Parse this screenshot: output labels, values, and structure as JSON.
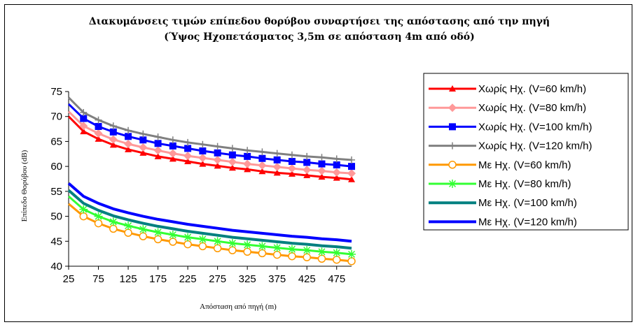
{
  "chart_data": {
    "type": "line",
    "title": "Διακυμάνσεις τιμών επίπεδου θορύβου συναρτήσει της απόστασης από την πηγή",
    "subtitle": "(Ύψος Ηχοπετάσματος 3,5m σε απόσταση 4m από οδό)",
    "xlabel": "Απόσταση από πηγή (m)",
    "ylabel": "Επίπεδο Θορύβου (dB)",
    "xlim": [
      25,
      500
    ],
    "ylim": [
      40,
      75
    ],
    "x_ticks": [
      "25",
      "75",
      "125",
      "175",
      "225",
      "275",
      "325",
      "375",
      "425",
      "475"
    ],
    "y_ticks": [
      "40",
      "45",
      "50",
      "55",
      "60",
      "65",
      "70",
      "75"
    ],
    "x": [
      25,
      50,
      75,
      100,
      125,
      150,
      175,
      200,
      225,
      250,
      275,
      300,
      325,
      350,
      375,
      400,
      425,
      450,
      475,
      500
    ],
    "grid": false,
    "legend": "right",
    "series": [
      {
        "name": "Χωρίς Ηχ. (V=60 km/h)",
        "color": "#ff0000",
        "marker": "triangle",
        "values": [
          70.0,
          67.0,
          65.5,
          64.3,
          63.4,
          62.7,
          62.0,
          61.5,
          61.0,
          60.5,
          60.1,
          59.7,
          59.4,
          59.0,
          58.7,
          58.5,
          58.2,
          57.9,
          57.7,
          57.4
        ]
      },
      {
        "name": "Χωρίς Ηχ. (V=80 km/h)",
        "color": "#ff9999",
        "marker": "diamond",
        "values": [
          71.0,
          68.1,
          66.6,
          65.4,
          64.5,
          63.8,
          63.2,
          62.6,
          62.1,
          61.7,
          61.3,
          60.9,
          60.5,
          60.2,
          59.9,
          59.6,
          59.3,
          59.1,
          58.8,
          58.6
        ]
      },
      {
        "name": "Χωρίς Ηχ. (V=100 km/h)",
        "color": "#0000ff",
        "marker": "square",
        "values": [
          72.5,
          69.6,
          68.0,
          66.9,
          66.0,
          65.3,
          64.6,
          64.1,
          63.6,
          63.1,
          62.7,
          62.3,
          62.0,
          61.6,
          61.3,
          61.0,
          60.8,
          60.5,
          60.3,
          60.0
        ]
      },
      {
        "name": "Χωρίς Ηχ. (V=120 km/h)",
        "color": "#808080",
        "marker": "plus",
        "values": [
          73.8,
          70.8,
          69.3,
          68.1,
          67.2,
          66.5,
          65.9,
          65.3,
          64.8,
          64.4,
          64.0,
          63.6,
          63.2,
          62.9,
          62.6,
          62.3,
          62.0,
          61.8,
          61.5,
          61.3
        ]
      },
      {
        "name": "Με Ηχ. (V=60 km/h)",
        "color": "#ff9900",
        "marker": "circle",
        "values": [
          52.5,
          50.0,
          48.6,
          47.5,
          46.7,
          46.0,
          45.4,
          44.9,
          44.4,
          44.0,
          43.6,
          43.2,
          42.9,
          42.6,
          42.3,
          42.0,
          41.8,
          41.5,
          41.3,
          41.0
        ]
      },
      {
        "name": "Με Ηχ. (V=80 km/h)",
        "color": "#33ff33",
        "marker": "star",
        "values": [
          54.0,
          51.4,
          50.0,
          48.9,
          48.1,
          47.4,
          46.8,
          46.3,
          45.8,
          45.4,
          45.0,
          44.6,
          44.3,
          44.0,
          43.7,
          43.4,
          43.2,
          42.9,
          42.7,
          42.4
        ]
      },
      {
        "name": "Με Ηχ. (V=100 km/h)",
        "color": "#008080",
        "marker": "none",
        "values": [
          55.2,
          52.6,
          51.2,
          50.1,
          49.3,
          48.6,
          48.0,
          47.5,
          47.0,
          46.6,
          46.2,
          45.8,
          45.5,
          45.2,
          44.9,
          44.6,
          44.4,
          44.1,
          43.9,
          43.6
        ]
      },
      {
        "name": "Με Ηχ. (V=120 km/h)",
        "color": "#0000ff",
        "marker": "none",
        "values": [
          56.6,
          54.0,
          52.6,
          51.5,
          50.7,
          50.0,
          49.4,
          48.9,
          48.4,
          48.0,
          47.6,
          47.2,
          46.9,
          46.6,
          46.3,
          46.0,
          45.8,
          45.5,
          45.3,
          45.0
        ]
      }
    ]
  }
}
